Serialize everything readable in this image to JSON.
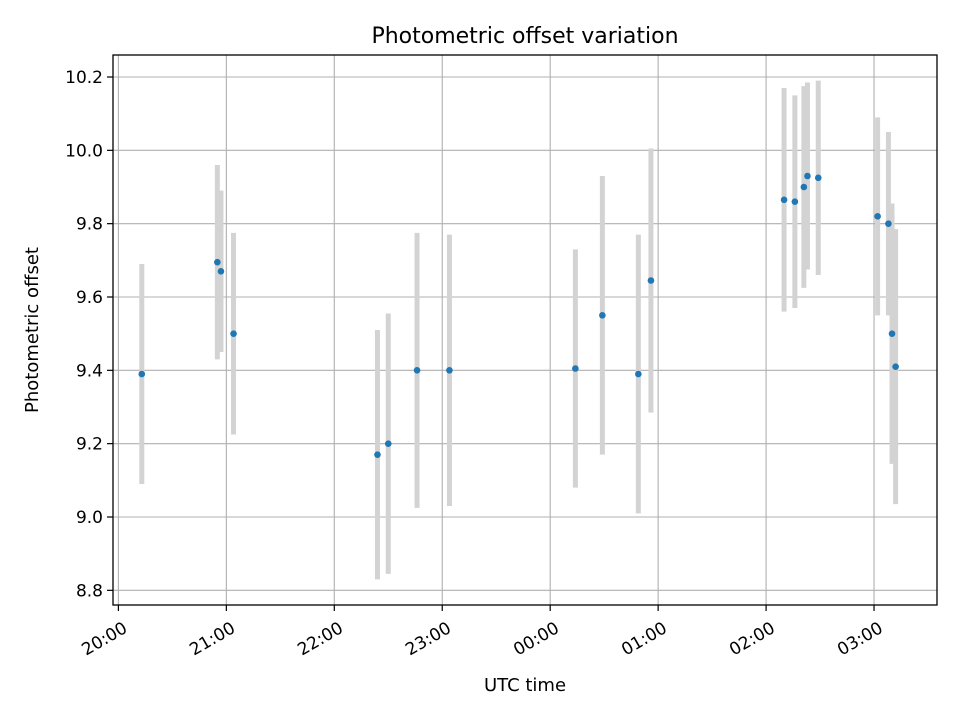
{
  "chart_data": {
    "type": "scatter",
    "title": "Photometric offset variation",
    "xlabel": "UTC time",
    "ylabel": "Photometric offset",
    "x_tick_labels": [
      "20:00",
      "21:00",
      "22:00",
      "23:00",
      "00:00",
      "01:00",
      "02:00",
      "03:00"
    ],
    "y_tick_labels": [
      "8.8",
      "9.0",
      "9.2",
      "9.4",
      "9.6",
      "9.8",
      "10.0",
      "10.2"
    ],
    "ylim": [
      8.76,
      10.26
    ],
    "xlim": [
      "19:57",
      "03:35"
    ],
    "grid": true,
    "colors": {
      "point": "#1f77b4",
      "errorbar": "#d3d3d3",
      "grid": "#b0b0b0"
    },
    "points": [
      {
        "x": "20:13",
        "y": 9.39,
        "err": 0.3
      },
      {
        "x": "20:55",
        "y": 9.695,
        "err": 0.265
      },
      {
        "x": "20:57",
        "y": 9.67,
        "err": 0.22
      },
      {
        "x": "21:04",
        "y": 9.5,
        "err": 0.275
      },
      {
        "x": "22:24",
        "y": 9.17,
        "err": 0.34
      },
      {
        "x": "22:30",
        "y": 9.2,
        "err": 0.355
      },
      {
        "x": "22:46",
        "y": 9.4,
        "err": 0.375
      },
      {
        "x": "23:04",
        "y": 9.4,
        "err": 0.37
      },
      {
        "x": "00:14",
        "y": 9.405,
        "err": 0.325
      },
      {
        "x": "00:29",
        "y": 9.55,
        "err": 0.38
      },
      {
        "x": "00:49",
        "y": 9.39,
        "err": 0.38
      },
      {
        "x": "00:56",
        "y": 9.645,
        "err": 0.36
      },
      {
        "x": "02:10",
        "y": 9.865,
        "err": 0.305
      },
      {
        "x": "02:16",
        "y": 9.86,
        "err": 0.29
      },
      {
        "x": "02:21",
        "y": 9.9,
        "err": 0.275
      },
      {
        "x": "02:23",
        "y": 9.93,
        "err": 0.255
      },
      {
        "x": "02:29",
        "y": 9.925,
        "err": 0.265
      },
      {
        "x": "03:02",
        "y": 9.82,
        "err": 0.27
      },
      {
        "x": "03:08",
        "y": 9.8,
        "err": 0.25
      },
      {
        "x": "03:10",
        "y": 9.5,
        "err": 0.355
      },
      {
        "x": "03:12",
        "y": 9.41,
        "err": 0.375
      }
    ]
  }
}
